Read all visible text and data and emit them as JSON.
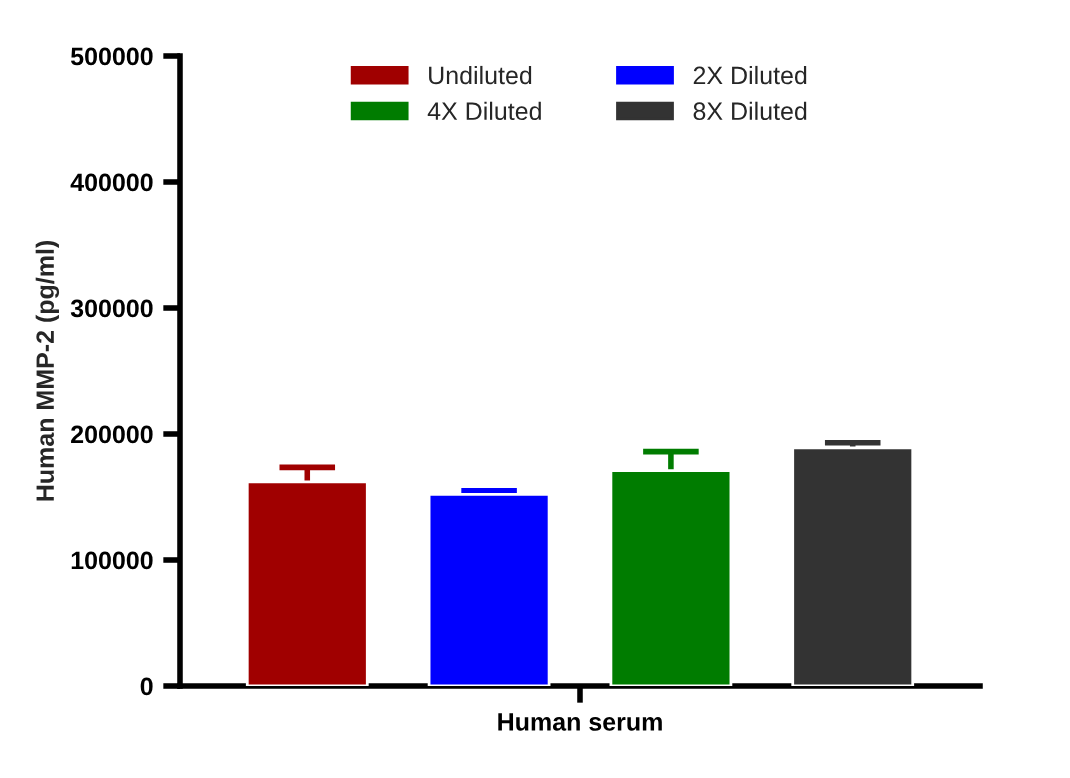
{
  "chart_data": {
    "type": "bar",
    "categories": [
      "Human serum"
    ],
    "ylabel": "Human MMP-2 (pg/ml)",
    "ylim": [
      0,
      500000
    ],
    "yticks": [
      0,
      100000,
      200000,
      300000,
      400000,
      500000
    ],
    "grid": false,
    "legend": "top",
    "series": [
      {
        "name": "Undiluted",
        "color": "#a00000",
        "values": [
          162000
        ],
        "errors": [
          11500
        ]
      },
      {
        "name": "2X Diluted",
        "color": "#0000ff",
        "values": [
          152000
        ],
        "errors": [
          3000
        ]
      },
      {
        "name": "4X Diluted",
        "color": "#007c00",
        "values": [
          171000
        ],
        "errors": [
          15000
        ]
      },
      {
        "name": "8X Diluted",
        "color": "#333333",
        "values": [
          189000
        ],
        "errors": [
          4000
        ]
      }
    ]
  }
}
